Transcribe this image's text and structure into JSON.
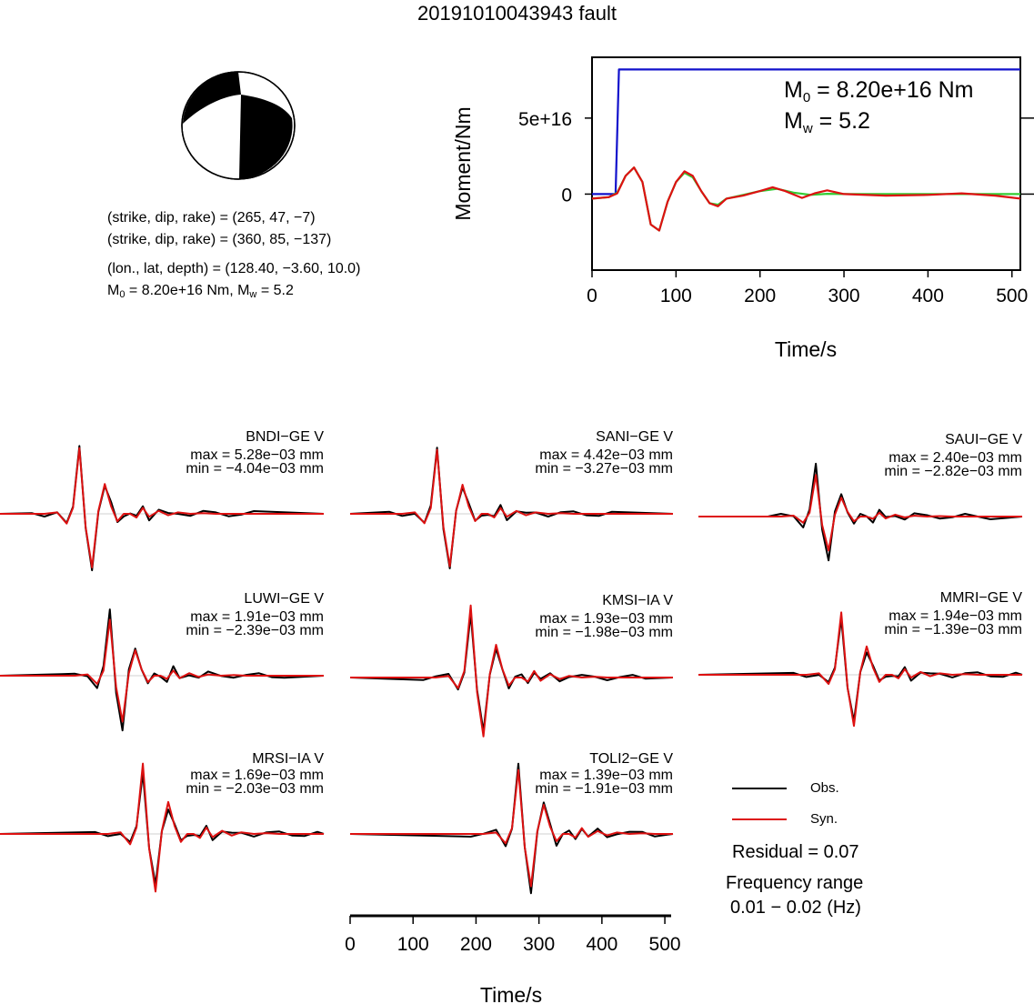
{
  "title": "20191010043943 fault",
  "mechanism": {
    "plane1": "(strike, dip, rake) = (265, 47, −7)",
    "plane2": "(strike, dip, rake) = (360, 85, −137)",
    "location": "(lon., lat, depth) = (128.40, −3.60, 10.0)",
    "moment_line": {
      "m0_prefix": "M",
      "m0_sub": "0",
      "m0_text": " = 8.20e+16 Nm, M",
      "mw_sub": "w",
      "mw_text": " = 5.2"
    }
  },
  "moment_plot": {
    "ylabel": "Moment/Nm",
    "xlabel": "Time/s",
    "m0_label": {
      "prefix": "M",
      "sub": "0",
      "text": " = 8.20e+16 Nm"
    },
    "mw_label": {
      "prefix": "M",
      "sub": "w",
      "text": " = 5.2"
    },
    "y_ticks": [
      "0",
      "5e+16"
    ],
    "x_ticks": [
      "0",
      "100",
      "200",
      "300",
      "400",
      "500"
    ]
  },
  "waveform_xaxis": {
    "xlabel": "Time/s",
    "x_ticks": [
      "0",
      "100",
      "200",
      "300",
      "400",
      "500"
    ]
  },
  "legend": {
    "obs": "Obs.",
    "syn": "Syn.",
    "residual": "Residual = 0.07",
    "freq_title": "Frequency range",
    "freq_range": "0.01 − 0.02 (Hz)"
  },
  "stations": [
    {
      "name": "BNDI−GE V",
      "max": "max = 5.28e−03 mm",
      "min": "min = −4.04e−03 mm"
    },
    {
      "name": "SANI−GE V",
      "max": "max = 4.42e−03 mm",
      "min": "min = −3.27e−03 mm"
    },
    {
      "name": "SAUI−GE V",
      "max": "max = 2.40e−03 mm",
      "min": "min = −2.82e−03 mm"
    },
    {
      "name": "LUWI−GE V",
      "max": "max = 1.91e−03 mm",
      "min": "min = −2.39e−03 mm"
    },
    {
      "name": "KMSI−IA V",
      "max": "max = 1.93e−03 mm",
      "min": "min = −1.98e−03 mm"
    },
    {
      "name": "MMRI−GE V",
      "max": "max = 1.94e−03 mm",
      "min": "min = −1.39e−03 mm"
    },
    {
      "name": "MRSI−IA V",
      "max": "max = 1.69e−03 mm",
      "min": "min = −2.03e−03 mm"
    },
    {
      "name": "TOLI2−GE V",
      "max": "max = 1.39e−03 mm",
      "min": "min = −1.91e−03 mm"
    }
  ],
  "colors": {
    "obs": "#000000",
    "syn": "#dd1111",
    "moment": "#1111cc",
    "stf_green": "#33cc33"
  },
  "chart_data": [
    {
      "type": "line",
      "xlim": [
        0,
        510
      ],
      "ylim": [
        -5e+16,
        9e+16
      ],
      "series": [
        {
          "x": [
            0,
            20,
            28,
            30,
            32,
            40,
            60,
            100,
            200,
            300,
            400,
            510
          ],
          "y": [
            0,
            0,
            0,
            4e+16,
            8.2e+16,
            8.2e+16,
            8.2e+16,
            8.2e+16,
            8.2e+16,
            8.2e+16,
            8.2e+16,
            8.2e+16
          ]
        },
        {
          "x": [
            0,
            20,
            30,
            40,
            50,
            60,
            70,
            80,
            90,
            100,
            110,
            120,
            130,
            140,
            150,
            160,
            180,
            200,
            220,
            240,
            260,
            280,
            300,
            350,
            400,
            450,
            500,
            510
          ],
          "y": [
            -3000000000000000.0,
            -2000000000000000.0,
            1000000000000000.0,
            1.2e+16,
            1.75e+16,
            8000000000000000.0,
            -2e+16,
            -2.4e+16,
            -5000000000000000.0,
            8000000000000000.0,
            1.4e+16,
            1.1e+16,
            2000000000000000.0,
            -6000000000000000.0,
            -7000000000000000.0,
            -3000000000000000.0,
            -500000000000000.0,
            2000000000000000.0,
            3500000000000000.0,
            1000000000000000.0,
            -500000000000000.0,
            200000000000000.0,
            0.0,
            0.0,
            0.0,
            0.0,
            0.0,
            0.0
          ]
        },
        {
          "x": [
            0,
            20,
            30,
            40,
            50,
            60,
            70,
            80,
            90,
            100,
            110,
            120,
            130,
            140,
            150,
            160,
            180,
            200,
            215,
            230,
            250,
            265,
            280,
            300,
            350,
            400,
            440,
            480,
            510
          ],
          "y": [
            -3000000000000000.0,
            -2000000000000000.0,
            500000000000000.0,
            1.2e+16,
            1.75e+16,
            8000000000000000.0,
            -2e+16,
            -2.4e+16,
            -5000000000000000.0,
            8000000000000000.0,
            1.5e+16,
            1.2e+16,
            2000000000000000.0,
            -6000000000000000.0,
            -8000000000000000.0,
            -3000000000000000.0,
            -1000000000000000.0,
            2000000000000000.0,
            4500000000000000.0,
            2000000000000000.0,
            -2500000000000000.0,
            500000000000000.0,
            2500000000000000.0,
            0.0,
            -1000000000000000.0,
            -500000000000000.0,
            500000000000000.0,
            -1000000000000000.0,
            -3000000000000000.0
          ]
        }
      ]
    },
    {
      "type": "line",
      "xlim": [
        0,
        510
      ],
      "ylim": [
        -1,
        1
      ],
      "x": [
        0,
        20,
        40,
        55,
        65,
        75,
        85,
        95,
        105,
        115,
        125,
        135,
        145,
        155,
        165,
        175,
        185,
        200,
        215,
        230,
        250,
        270,
        290,
        310,
        330,
        350
      ],
      "series": [
        {
          "values": [
            0,
            0,
            0.02,
            -0.15,
            0.1,
            0.9,
            -0.2,
            -0.75,
            0.05,
            0.38,
            0.12,
            -0.12,
            0.0,
            0.01,
            -0.06,
            0.1,
            -0.05,
            0.04,
            -0.02,
            0.02,
            0.0,
            0.01,
            0.0,
            0.0,
            0.0,
            0.0
          ]
        },
        {
          "values": [
            0,
            0,
            0.02,
            -0.13,
            0.08,
            0.88,
            -0.18,
            -0.72,
            0.04,
            0.4,
            0.1,
            -0.1,
            0.0,
            0.0,
            -0.05,
            0.08,
            -0.04,
            0.04,
            -0.02,
            0.02,
            0.0,
            0.01,
            0.0,
            0.0,
            0.0,
            0.0
          ]
        }
      ]
    }
  ]
}
